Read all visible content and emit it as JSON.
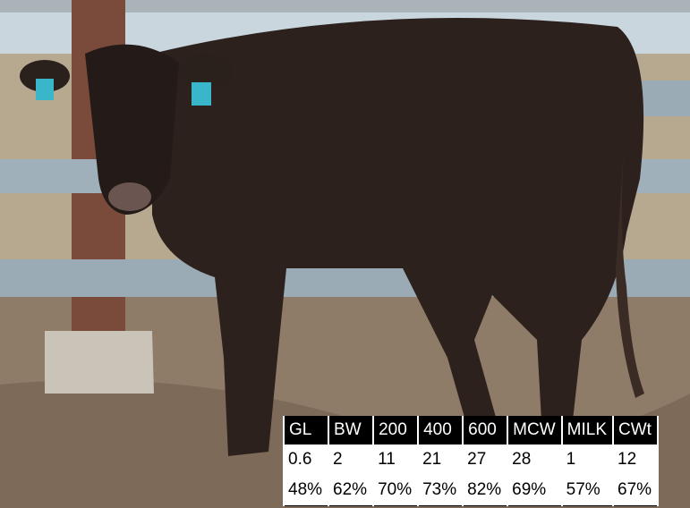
{
  "table": {
    "header": [
      "GL",
      "BW",
      "200",
      "400",
      "600",
      "MCW",
      "MILK",
      "CWt"
    ],
    "rows": [
      [
        "0.6",
        "2",
        "11",
        "21",
        "27",
        "28",
        "1",
        "12"
      ],
      [
        "48%",
        "62%",
        "70%",
        "73%",
        "82%",
        "69%",
        "57%",
        "67%"
      ]
    ]
  }
}
